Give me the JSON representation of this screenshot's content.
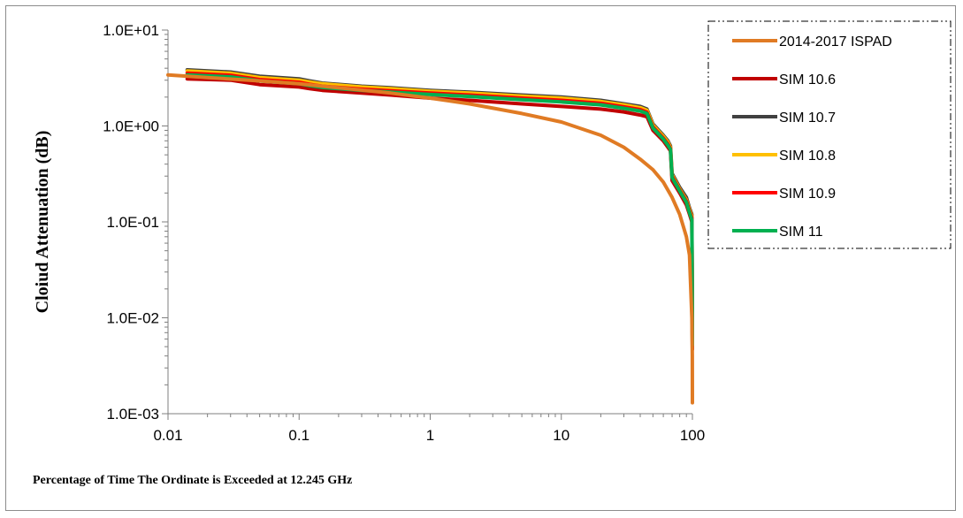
{
  "chart_data": {
    "type": "line",
    "xlabel": "Percentage of Time The Ordinate is Exceeded at 12.245 GHz",
    "ylabel": "Cloiud Attenuation (dB)",
    "x_scale": "log",
    "y_scale": "log",
    "xlim": [
      0.01,
      100
    ],
    "ylim": [
      0.001,
      10
    ],
    "x_ticks": [
      "0.01",
      "0.1",
      "1",
      "10",
      "100"
    ],
    "y_ticks": [
      "1.0E-03",
      "1.0E-02",
      "1.0E-01",
      "1.0E+00",
      "1.0E+01"
    ],
    "grid": false,
    "legend_position": "top-right",
    "series": [
      {
        "name": "2014-2017  ISPAD",
        "color": "#E07B24",
        "x": [
          0.01,
          0.02,
          0.05,
          0.1,
          0.2,
          0.5,
          1,
          2,
          5,
          10,
          20,
          30,
          40,
          50,
          60,
          70,
          80,
          90,
          95,
          99,
          99.8,
          100
        ],
        "y": [
          3.4,
          3.2,
          2.95,
          2.75,
          2.5,
          2.2,
          1.95,
          1.7,
          1.35,
          1.1,
          0.8,
          0.6,
          0.45,
          0.35,
          0.26,
          0.18,
          0.12,
          0.07,
          0.045,
          0.01,
          0.004,
          0.0013
        ]
      },
      {
        "name": "SIM 10.6",
        "color": "#C00000",
        "x": [
          0.014,
          0.03,
          0.05,
          0.1,
          0.12,
          0.15,
          0.3,
          0.5,
          1,
          2,
          5,
          10,
          20,
          30,
          40,
          45,
          50,
          60,
          65,
          68,
          70,
          80,
          90,
          95,
          99,
          100
        ],
        "y": [
          3.1,
          3.0,
          2.7,
          2.55,
          2.45,
          2.35,
          2.2,
          2.1,
          1.95,
          1.85,
          1.7,
          1.6,
          1.5,
          1.4,
          1.3,
          1.25,
          0.9,
          0.7,
          0.6,
          0.55,
          0.27,
          0.2,
          0.15,
          0.12,
          0.1,
          0.0047
        ]
      },
      {
        "name": "SIM 10.7",
        "color": "#404040",
        "x": [
          0.014,
          0.03,
          0.05,
          0.1,
          0.12,
          0.15,
          0.3,
          0.5,
          1,
          2,
          5,
          10,
          20,
          30,
          40,
          45,
          50,
          60,
          65,
          68,
          70,
          80,
          90,
          95,
          99,
          100
        ],
        "y": [
          3.85,
          3.65,
          3.3,
          3.1,
          2.95,
          2.8,
          2.6,
          2.5,
          2.35,
          2.25,
          2.1,
          2.0,
          1.85,
          1.7,
          1.6,
          1.5,
          1.05,
          0.8,
          0.7,
          0.62,
          0.32,
          0.23,
          0.18,
          0.14,
          0.12,
          0.006
        ]
      },
      {
        "name": "SIM 10.8",
        "color": "#FFC000",
        "x": [
          0.014,
          0.03,
          0.05,
          0.1,
          0.12,
          0.15,
          0.3,
          0.5,
          1,
          2,
          5,
          10,
          20,
          30,
          40,
          45,
          50,
          60,
          65,
          68,
          70,
          80,
          90,
          95,
          99,
          100
        ],
        "y": [
          3.75,
          3.55,
          3.2,
          3.0,
          2.88,
          2.75,
          2.55,
          2.45,
          2.3,
          2.2,
          2.05,
          1.95,
          1.8,
          1.66,
          1.55,
          1.46,
          1.02,
          0.78,
          0.68,
          0.6,
          0.31,
          0.22,
          0.17,
          0.135,
          0.115,
          0.0058
        ]
      },
      {
        "name": "SIM 10.9",
        "color": "#FF0000",
        "x": [
          0.014,
          0.03,
          0.05,
          0.1,
          0.12,
          0.15,
          0.3,
          0.5,
          1,
          2,
          5,
          10,
          20,
          30,
          40,
          45,
          50,
          60,
          65,
          68,
          70,
          80,
          90,
          95,
          99,
          100
        ],
        "y": [
          3.55,
          3.38,
          3.05,
          2.85,
          2.72,
          2.6,
          2.42,
          2.32,
          2.2,
          2.1,
          1.95,
          1.85,
          1.72,
          1.58,
          1.48,
          1.39,
          0.98,
          0.75,
          0.65,
          0.58,
          0.3,
          0.215,
          0.165,
          0.13,
          0.11,
          0.0055
        ]
      },
      {
        "name": "SIM 11",
        "color": "#00B050",
        "x": [
          0.014,
          0.03,
          0.05,
          0.1,
          0.12,
          0.15,
          0.3,
          0.5,
          1,
          2,
          5,
          10,
          20,
          30,
          40,
          45,
          50,
          60,
          65,
          68,
          70,
          80,
          90,
          95,
          99,
          100
        ],
        "y": [
          3.4,
          3.25,
          2.95,
          2.75,
          2.63,
          2.52,
          2.35,
          2.25,
          2.13,
          2.03,
          1.88,
          1.78,
          1.66,
          1.53,
          1.43,
          1.35,
          0.95,
          0.73,
          0.63,
          0.57,
          0.29,
          0.21,
          0.16,
          0.125,
          0.105,
          0.0052
        ]
      }
    ]
  }
}
